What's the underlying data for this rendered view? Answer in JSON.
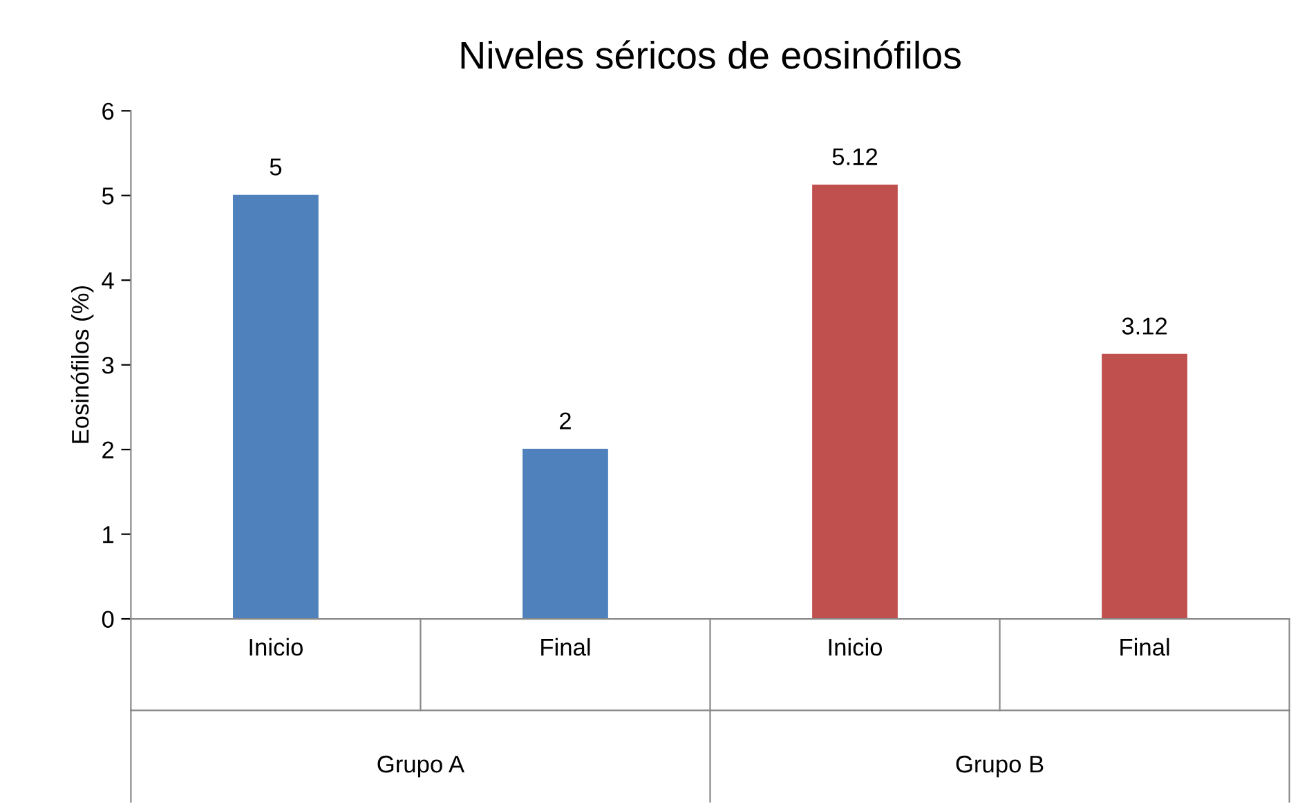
{
  "chart_data": {
    "type": "bar",
    "title": "Niveles séricos de eosinófilos",
    "ylabel": "Eosinófilos (%)",
    "categories": [
      "Inicio",
      "Final",
      "Inicio",
      "Final"
    ],
    "values": [
      5,
      2,
      5.12,
      3.12
    ],
    "colors": [
      "#4f81bd",
      "#4f81bd",
      "#c0504d",
      "#c0504d"
    ],
    "annotations": [
      "Grupo A",
      "Grupo B"
    ],
    "ylim": [
      0,
      6
    ],
    "yticks": [
      0,
      1,
      2,
      3,
      4,
      5,
      6
    ],
    "grid": false,
    "legend": false,
    "data_labels": true
  }
}
